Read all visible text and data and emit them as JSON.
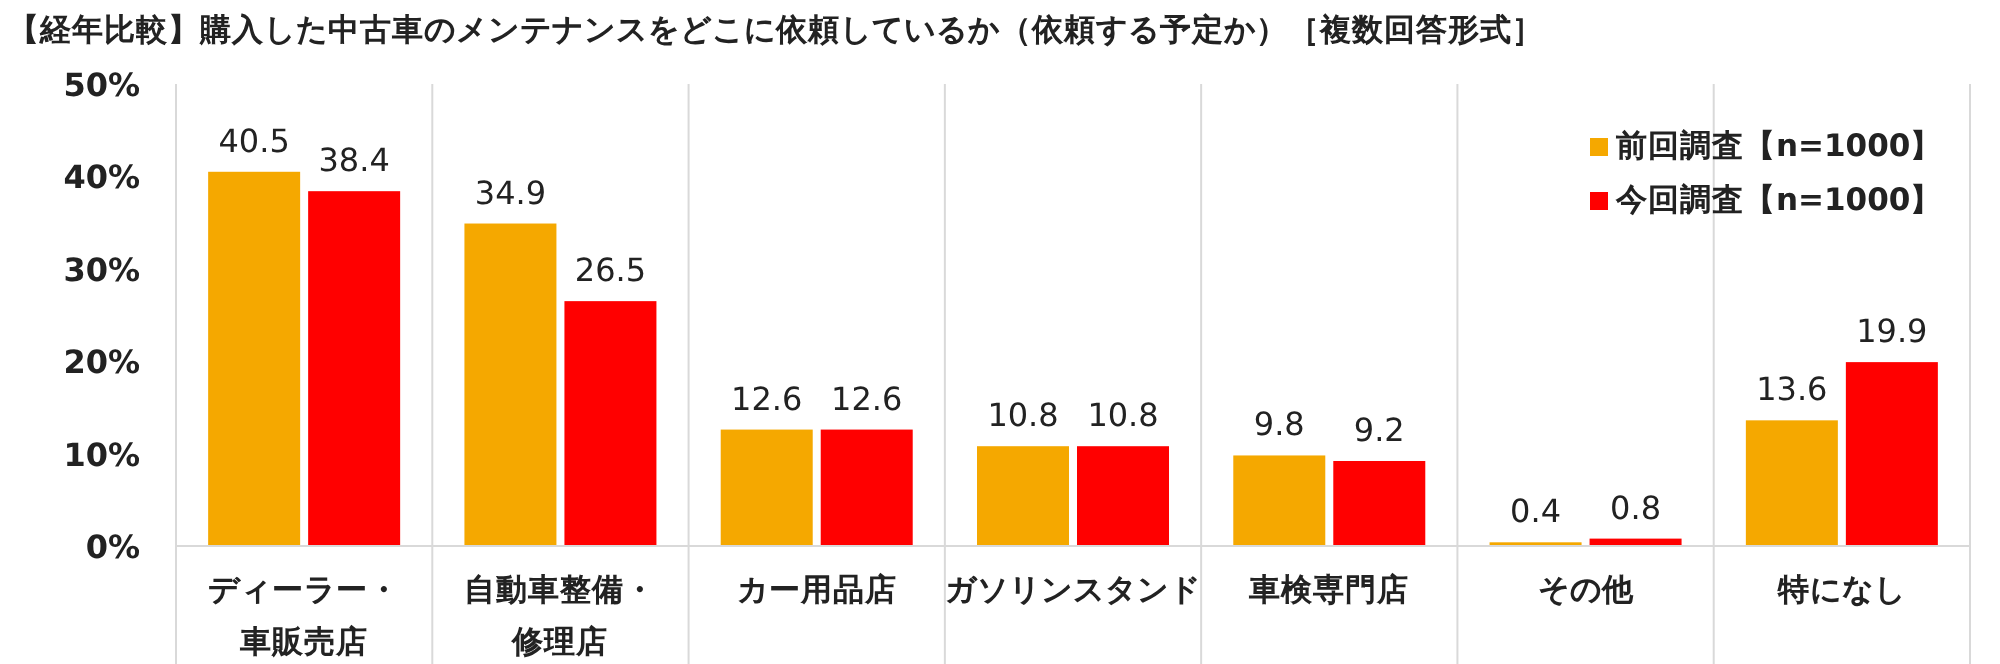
{
  "chart_data": {
    "type": "bar",
    "title": "【経年比較】購入した中古車のメンテナンスをどこに依頼しているか（依頼する予定か）［複数回答形式］",
    "categories": [
      "ディーラー・車販売店",
      "自動車整備・修理店",
      "カー用品店",
      "ガソリンスタンド",
      "車検専門店",
      "その他",
      "特になし"
    ],
    "series": [
      {
        "name": "前回調査【n=1000】",
        "color": "#f5a800",
        "values": [
          40.5,
          34.9,
          12.6,
          10.8,
          9.8,
          0.4,
          13.6
        ]
      },
      {
        "name": "今回調査【n=1000】",
        "color": "#ff0000",
        "values": [
          38.4,
          26.5,
          12.6,
          10.8,
          9.2,
          0.8,
          19.9
        ]
      }
    ],
    "ylim": [
      0,
      50
    ],
    "yticks": [
      {
        "value": 0,
        "label": "0%"
      },
      {
        "value": 10,
        "label": "10%"
      },
      {
        "value": 20,
        "label": "20%"
      },
      {
        "value": 30,
        "label": "30%"
      },
      {
        "value": 40,
        "label": "40%"
      },
      {
        "value": 50,
        "label": "50%"
      }
    ],
    "grid": "x",
    "legend": "top right",
    "data_labels": true
  }
}
